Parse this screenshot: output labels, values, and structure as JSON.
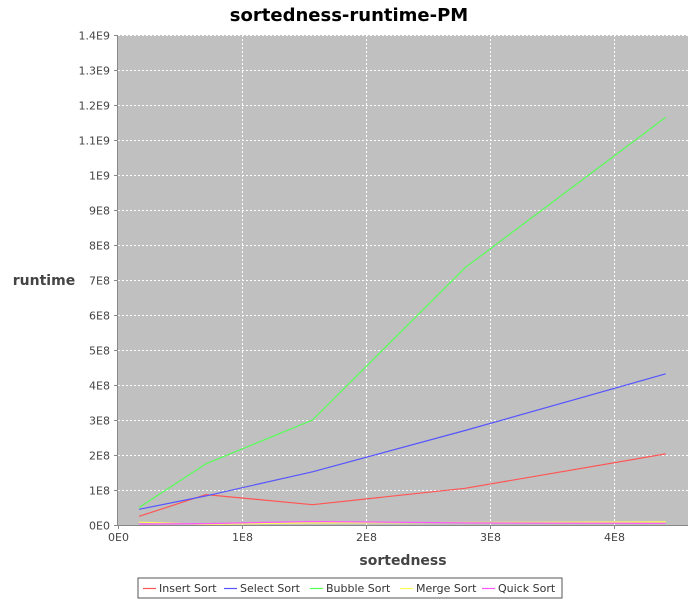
{
  "chart_data": {
    "type": "line",
    "title": "sortedness-runtime-PM",
    "xlabel": "sortedness",
    "ylabel": "runtime",
    "xlim": [
      0,
      460000000
    ],
    "ylim": [
      0,
      1400000000
    ],
    "x_ticks": [
      {
        "value": 0,
        "label": "0E0"
      },
      {
        "value": 100000000,
        "label": "1E8"
      },
      {
        "value": 200000000,
        "label": "2E8"
      },
      {
        "value": 300000000,
        "label": "3E8"
      },
      {
        "value": 400000000,
        "label": "4E8"
      }
    ],
    "y_ticks": [
      {
        "value": 0,
        "label": "0E0"
      },
      {
        "value": 100000000,
        "label": "1E8"
      },
      {
        "value": 200000000,
        "label": "2E8"
      },
      {
        "value": 300000000,
        "label": "3E8"
      },
      {
        "value": 400000000,
        "label": "4E8"
      },
      {
        "value": 500000000,
        "label": "5E8"
      },
      {
        "value": 600000000,
        "label": "6E8"
      },
      {
        "value": 700000000,
        "label": "7E8"
      },
      {
        "value": 800000000,
        "label": "8E8"
      },
      {
        "value": 900000000,
        "label": "9E8"
      },
      {
        "value": 1000000000,
        "label": "1E9"
      },
      {
        "value": 1100000000,
        "label": "1.1E9"
      },
      {
        "value": 1200000000,
        "label": "1.2E9"
      },
      {
        "value": 1300000000,
        "label": "1.3E9"
      },
      {
        "value": 1400000000,
        "label": "1.4E9"
      }
    ],
    "grid": true,
    "legend_position": "bottom",
    "plot_background": "#c0c0c0",
    "grid_color": "#ffffff",
    "x": [
      17000000,
      71000000,
      157000000,
      280000000,
      442000000
    ],
    "series": [
      {
        "name": "Insert Sort",
        "color": "#ff5555",
        "values": [
          25000000,
          87000000,
          58000000,
          105000000,
          203000000
        ]
      },
      {
        "name": "Select Sort",
        "color": "#5555ff",
        "values": [
          45000000,
          83000000,
          152000000,
          270000000,
          432000000
        ]
      },
      {
        "name": "Bubble Sort",
        "color": "#55ff55",
        "values": [
          50000000,
          175000000,
          300000000,
          735000000,
          1165000000
        ]
      },
      {
        "name": "Merge Sort",
        "color": "#ffff55",
        "values": [
          8000000,
          2000000,
          6000000,
          7000000,
          9000000
        ]
      },
      {
        "name": "Quick Sort",
        "color": "#ff55ff",
        "values": [
          3000000,
          4000000,
          10000000,
          6000000,
          5000000
        ]
      }
    ]
  }
}
